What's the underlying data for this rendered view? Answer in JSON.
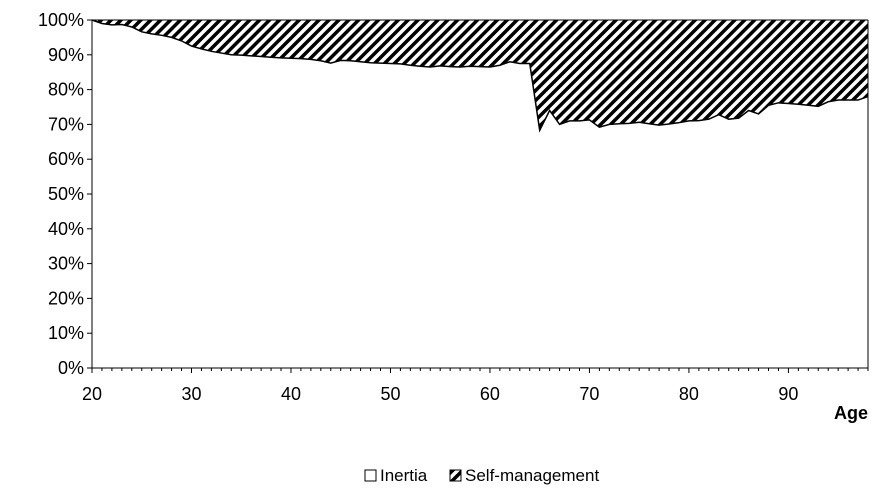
{
  "chart_data": {
    "type": "area",
    "stacked": true,
    "percent": true,
    "xlabel": "Age",
    "ylabel": "",
    "title": "",
    "xlim": [
      20,
      98
    ],
    "ylim": [
      0,
      100
    ],
    "x_ticks": [
      20,
      30,
      40,
      50,
      60,
      70,
      80,
      90
    ],
    "y_ticks": [
      "0%",
      "10%",
      "20%",
      "30%",
      "40%",
      "50%",
      "60%",
      "70%",
      "80%",
      "90%",
      "100%"
    ],
    "grid": false,
    "legend_position": "bottom",
    "x": [
      20,
      21,
      22,
      23,
      24,
      25,
      26,
      27,
      28,
      29,
      30,
      31,
      32,
      33,
      34,
      35,
      36,
      37,
      38,
      39,
      40,
      41,
      42,
      43,
      44,
      45,
      46,
      47,
      48,
      49,
      50,
      51,
      52,
      53,
      54,
      55,
      56,
      57,
      58,
      59,
      60,
      61,
      62,
      63,
      64,
      65,
      66,
      67,
      68,
      69,
      70,
      71,
      72,
      73,
      74,
      75,
      76,
      77,
      78,
      79,
      80,
      81,
      82,
      83,
      84,
      85,
      86,
      87,
      88,
      89,
      90,
      91,
      92,
      93,
      94,
      95,
      96,
      97,
      98
    ],
    "series": [
      {
        "name": "Inertia",
        "fill": "white",
        "values": [
          100,
          99,
          98.6,
          98.7,
          98,
          96.6,
          96,
          95.6,
          95,
          94,
          92.5,
          91.7,
          91,
          90.5,
          90,
          89.9,
          89.7,
          89.5,
          89.3,
          89.1,
          89,
          88.9,
          88.7,
          88.3,
          87.6,
          88.4,
          88.3,
          88,
          87.7,
          87.6,
          87.5,
          87.4,
          87,
          86.7,
          86.5,
          86.8,
          86.6,
          86.5,
          86.7,
          86.6,
          86.5,
          87,
          88,
          87.5,
          87.5,
          68.3,
          74,
          70,
          71,
          71,
          71.3,
          69.2,
          70,
          70.2,
          70.3,
          70.6,
          70.2,
          69.8,
          70.1,
          70.5,
          71,
          71.1,
          71.5,
          72.8,
          71.5,
          71.8,
          74,
          73,
          75.5,
          76.2,
          76,
          75.8,
          75.5,
          75.2,
          76.5,
          77,
          77,
          77,
          78
        ]
      },
      {
        "name": "Self-management",
        "fill": "diagonal-hatch",
        "values": [
          0,
          1,
          1.4,
          1.3,
          2,
          3.4,
          4,
          4.4,
          5,
          6,
          7.5,
          8.3,
          9,
          9.5,
          10,
          10.1,
          10.3,
          10.5,
          10.7,
          10.9,
          11,
          11.1,
          11.3,
          11.7,
          12.4,
          11.6,
          11.7,
          12,
          12.3,
          12.4,
          12.5,
          12.6,
          13,
          13.3,
          13.5,
          13.2,
          13.4,
          13.5,
          13.3,
          13.4,
          13.5,
          13,
          12,
          12.5,
          12.5,
          31.7,
          26,
          30,
          29,
          29,
          28.7,
          30.8,
          30,
          29.8,
          29.7,
          29.4,
          29.8,
          30.2,
          29.9,
          29.5,
          29,
          28.9,
          28.5,
          27.2,
          28.5,
          28.2,
          26,
          27,
          24.5,
          23.8,
          24,
          24.2,
          24.5,
          24.8,
          23.5,
          23,
          23,
          23,
          22
        ]
      }
    ]
  }
}
